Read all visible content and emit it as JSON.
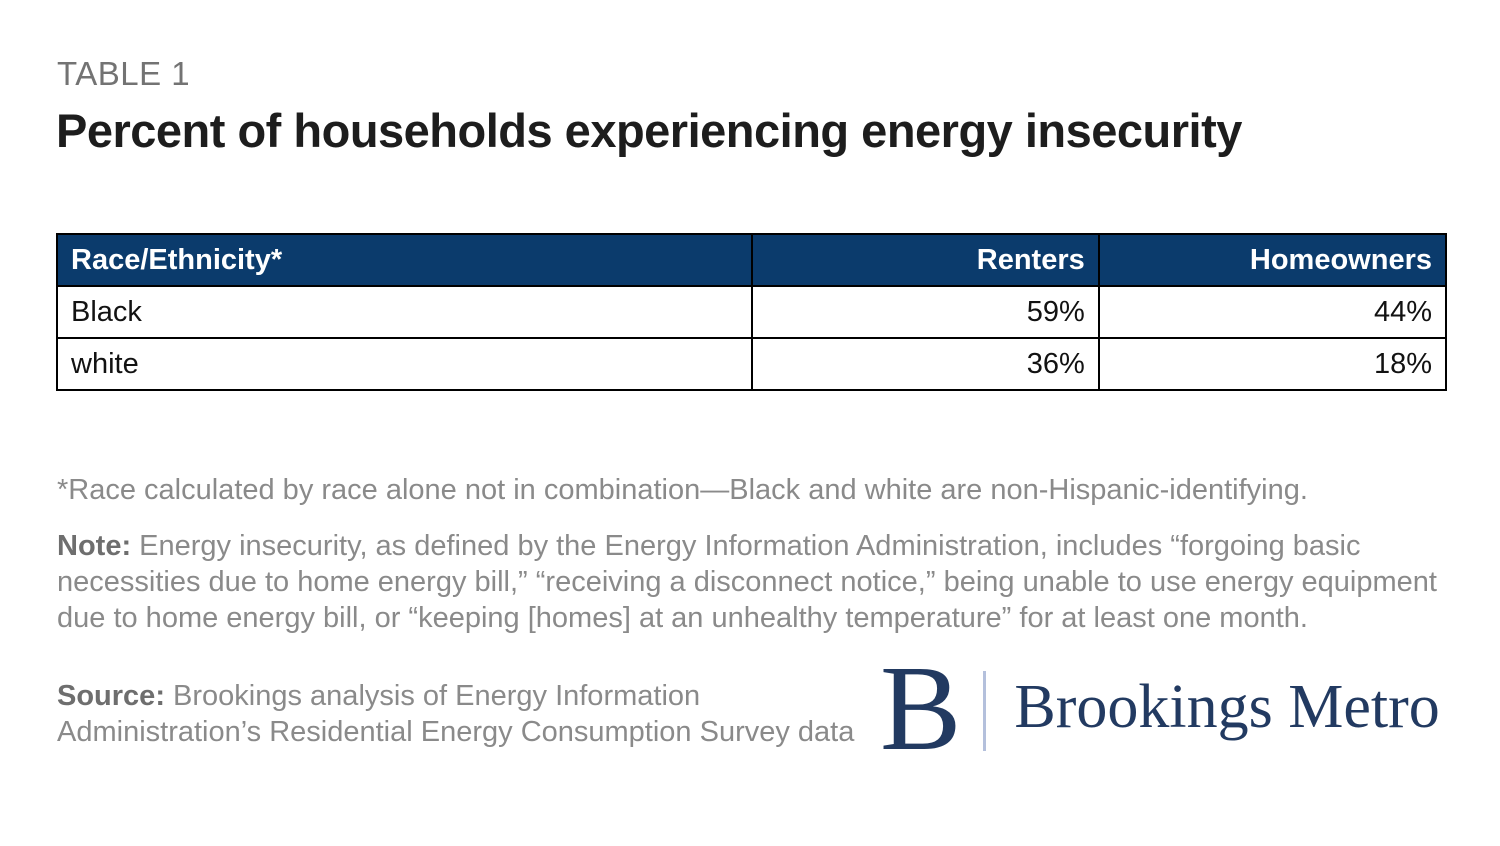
{
  "page": {
    "eyebrow": "TABLE 1",
    "title": "Percent of households experiencing energy insecurity"
  },
  "table": {
    "columns": [
      "Race/Ethnicity*",
      "Renters",
      "Homeowners"
    ],
    "rows": [
      {
        "label": "Black",
        "renters": "59%",
        "homeowners": "44%"
      },
      {
        "label": "white",
        "renters": "36%",
        "homeowners": "18%"
      }
    ]
  },
  "notes": {
    "footnote": "*Race calculated by race alone not in combination—Black and white are non-Hispanic-identifying.",
    "note_label": "Note:",
    "note_text": " Energy insecurity, as defined by the Energy Information Administration, includes “forgoing basic necessities due to home energy bill,” “receiving a disconnect notice,” being unable to use energy equipment due to home energy bill, or “keeping [homes] at an unhealthy temperature” for at least one month.",
    "source_label": "Source:",
    "source_text": " Brookings analysis of Energy Information Administration’s Residential Energy Consumption Survey data"
  },
  "logo": {
    "mark": "B",
    "wordmark": "Brookings Metro"
  },
  "colors": {
    "header_bg": "#0b3b6c",
    "logo_navy": "#223a61",
    "logo_divider": "#b4c0dc",
    "fineprint_gray": "#8a8a8a",
    "eyebrow_gray": "#737373",
    "title_black": "#1d1d1d"
  },
  "chart_data": {
    "type": "table",
    "title": "Percent of households experiencing energy insecurity",
    "columns": [
      "Race/Ethnicity*",
      "Renters",
      "Homeowners"
    ],
    "categories": [
      "Black",
      "white"
    ],
    "series": [
      {
        "name": "Renters",
        "values": [
          59,
          36
        ]
      },
      {
        "name": "Homeowners",
        "values": [
          44,
          18
        ]
      }
    ],
    "units": "percent"
  }
}
